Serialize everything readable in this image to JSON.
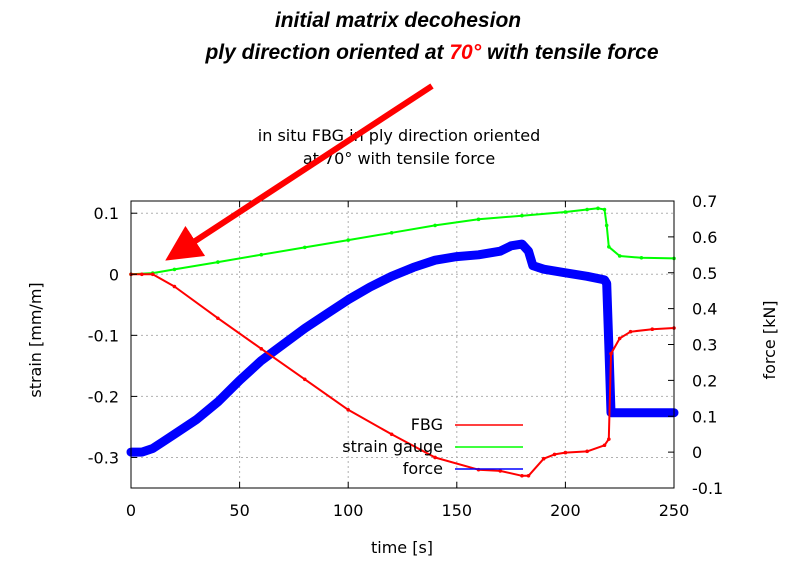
{
  "annotation": {
    "line1": "initial matrix decohesion",
    "line2_before": "ply direction oriented at ",
    "line2_highlight": "70°",
    "line2_after": " with tensile force",
    "highlight_color": "#ff0000",
    "arrow_color": "#ff0000",
    "arrow_points_to": {
      "x": 13,
      "y": 0.02
    }
  },
  "chart_data": {
    "type": "line",
    "title_line1": "in situ FBG in ply direction oriented",
    "title_line2": "at 70° with tensile force",
    "xlabel": "time [s]",
    "ylabel": "strain [mm/m]",
    "y2label": "force [kN]",
    "xlim": [
      0,
      250
    ],
    "ylim": [
      -0.35,
      0.12
    ],
    "y2lim": [
      -0.1,
      0.7
    ],
    "xticks": [
      "0",
      "50",
      "100",
      "150",
      "200",
      "250"
    ],
    "xtick_values": [
      0,
      50,
      100,
      150,
      200,
      250
    ],
    "yticks": [
      "-0.3",
      "-0.2",
      "-0.1",
      "0",
      "0.1"
    ],
    "ytick_values": [
      -0.3,
      -0.2,
      -0.1,
      0,
      0.1
    ],
    "y2ticks": [
      "-0.1",
      "0",
      "0.1",
      "0.2",
      "0.3",
      "0.4",
      "0.5",
      "0.6",
      "0.7"
    ],
    "y2tick_values": [
      -0.1,
      0,
      0.1,
      0.2,
      0.3,
      0.4,
      0.5,
      0.6,
      0.7
    ],
    "grid": true,
    "legend_position": "bottom-center",
    "series": [
      {
        "name": "FBG",
        "axis": "left",
        "color": "#ff0000",
        "x": [
          0,
          5,
          10,
          20,
          40,
          60,
          80,
          100,
          120,
          140,
          160,
          170,
          180,
          183,
          190,
          195,
          200,
          210,
          218,
          220,
          221,
          225,
          230,
          240,
          250
        ],
        "y": [
          0,
          0,
          0,
          -0.02,
          -0.072,
          -0.122,
          -0.172,
          -0.222,
          -0.262,
          -0.3,
          -0.32,
          -0.322,
          -0.33,
          -0.33,
          -0.302,
          -0.295,
          -0.292,
          -0.29,
          -0.28,
          -0.27,
          -0.13,
          -0.105,
          -0.094,
          -0.09,
          -0.088
        ]
      },
      {
        "name": "strain gauge",
        "axis": "left",
        "color": "#00ff00",
        "x": [
          0,
          10,
          20,
          40,
          60,
          80,
          100,
          120,
          140,
          160,
          180,
          200,
          210,
          215,
          218,
          219,
          220,
          225,
          235,
          250
        ],
        "y": [
          0,
          0.002,
          0.008,
          0.02,
          0.032,
          0.044,
          0.056,
          0.068,
          0.08,
          0.09,
          0.096,
          0.102,
          0.106,
          0.108,
          0.106,
          0.08,
          0.045,
          0.03,
          0.027,
          0.026
        ]
      },
      {
        "name": "force",
        "axis": "right",
        "color": "#0000ff",
        "x": [
          0,
          5,
          10,
          15,
          20,
          30,
          40,
          50,
          60,
          70,
          80,
          90,
          100,
          110,
          120,
          130,
          140,
          150,
          160,
          170,
          175,
          180,
          183,
          185,
          190,
          200,
          210,
          218,
          219,
          220,
          221,
          225,
          230,
          240,
          250
        ],
        "y": [
          0.0,
          0.0,
          0.01,
          0.03,
          0.05,
          0.09,
          0.14,
          0.2,
          0.255,
          0.3,
          0.345,
          0.385,
          0.425,
          0.46,
          0.49,
          0.515,
          0.535,
          0.545,
          0.55,
          0.56,
          0.575,
          0.58,
          0.56,
          0.52,
          0.51,
          0.5,
          0.49,
          0.48,
          0.47,
          0.3,
          0.11,
          0.11,
          0.11,
          0.11,
          0.11
        ]
      }
    ]
  }
}
